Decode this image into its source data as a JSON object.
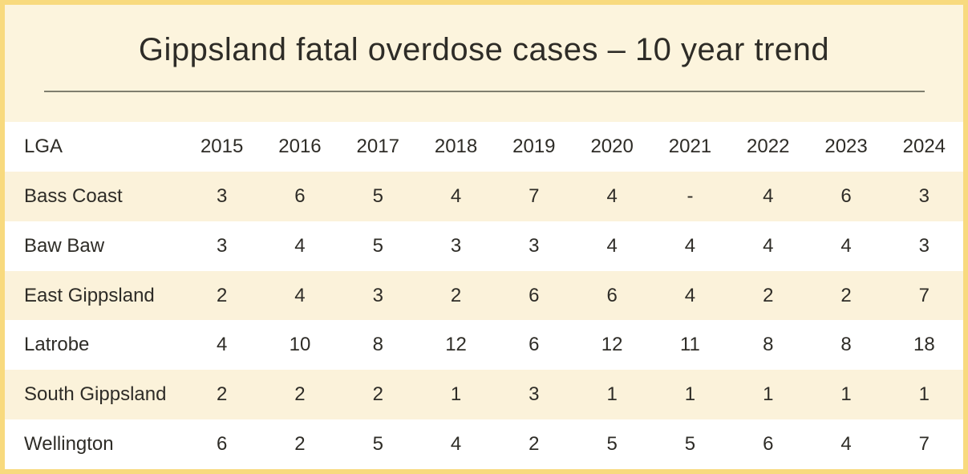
{
  "colors": {
    "card_border": "#f8da7e",
    "card_background": "#fcf4dd",
    "row_stripe": "#fbf2da",
    "row_alt": "#ffffff",
    "divider": "#7f7e6e",
    "text": "#2e2c27"
  },
  "chart_data": {
    "type": "table",
    "title": "Gippsland fatal overdose cases – 10 year trend",
    "columns": [
      "LGA",
      "2015",
      "2016",
      "2017",
      "2018",
      "2019",
      "2020",
      "2021",
      "2022",
      "2023",
      "2024"
    ],
    "rows": [
      {
        "label": "Bass Coast",
        "values": [
          "3",
          "6",
          "5",
          "4",
          "7",
          "4",
          "-",
          "4",
          "6",
          "3"
        ]
      },
      {
        "label": "Baw Baw",
        "values": [
          "3",
          "4",
          "5",
          "3",
          "3",
          "4",
          "4",
          "4",
          "4",
          "3"
        ]
      },
      {
        "label": "East Gippsland",
        "values": [
          "2",
          "4",
          "3",
          "2",
          "6",
          "6",
          "4",
          "2",
          "2",
          "7"
        ]
      },
      {
        "label": "Latrobe",
        "values": [
          "4",
          "10",
          "8",
          "12",
          "6",
          "12",
          "11",
          "8",
          "8",
          "18"
        ]
      },
      {
        "label": "South Gippsland",
        "values": [
          "2",
          "2",
          "2",
          "1",
          "3",
          "1",
          "1",
          "1",
          "1",
          "1"
        ]
      },
      {
        "label": "Wellington",
        "values": [
          "6",
          "2",
          "5",
          "4",
          "2",
          "5",
          "5",
          "6",
          "4",
          "7"
        ]
      }
    ]
  }
}
